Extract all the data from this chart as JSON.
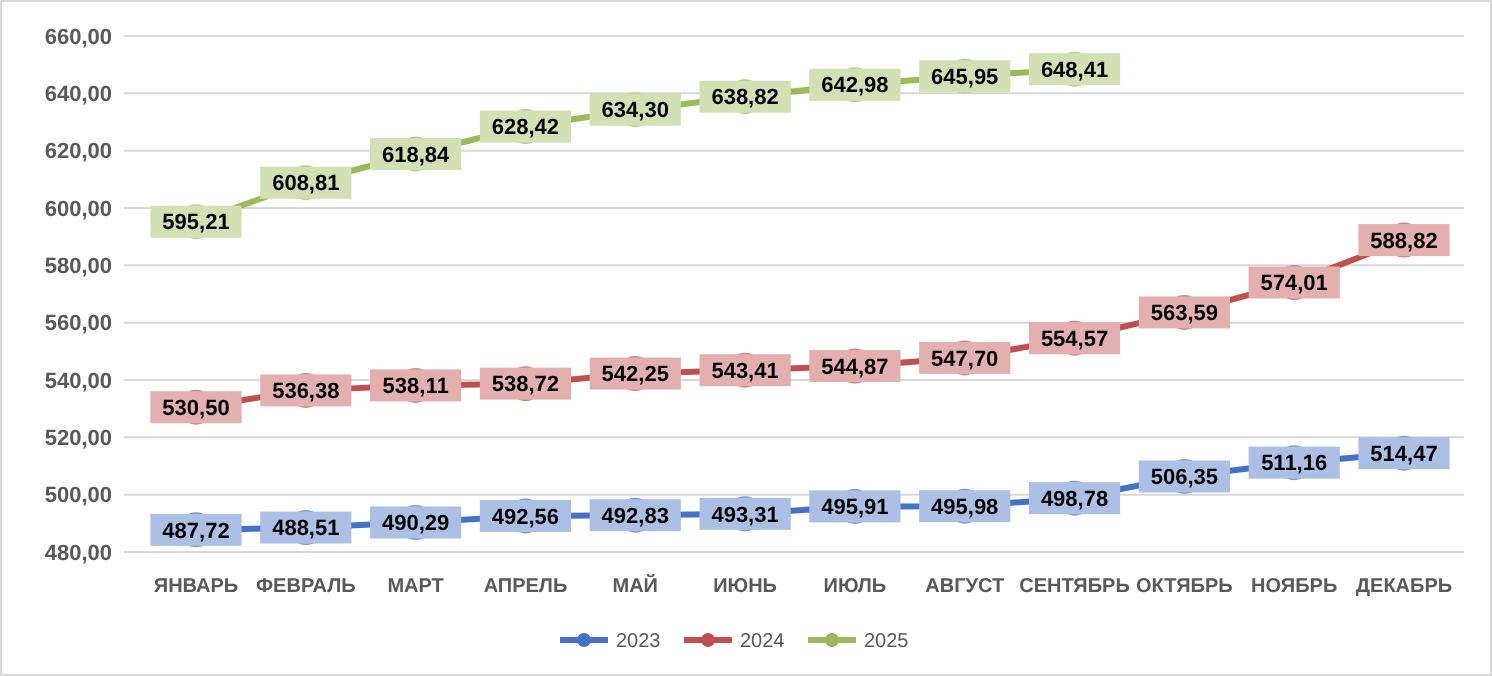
{
  "chart_data": {
    "type": "line",
    "categories": [
      "ЯНВАРЬ",
      "ФЕВРАЛЬ",
      "МАРТ",
      "АПРЕЛЬ",
      "МАЙ",
      "ИЮНЬ",
      "ИЮЛЬ",
      "АВГУСТ",
      "СЕНТЯБРЬ",
      "ОКТЯБРЬ",
      "НОЯБРЬ",
      "ДЕКАБРЬ"
    ],
    "series": [
      {
        "name": "2023",
        "color": "#4472c4",
        "values": [
          487.72,
          488.51,
          490.29,
          492.56,
          492.83,
          493.31,
          495.91,
          495.98,
          498.78,
          506.35,
          511.16,
          514.47
        ],
        "value_labels": [
          "487,72",
          "488,51",
          "490,29",
          "492,56",
          "492,83",
          "493,31",
          "495,91",
          "495,98",
          "498,78",
          "506,35",
          "511,16",
          "514,47"
        ]
      },
      {
        "name": "2024",
        "color": "#c0504d",
        "values": [
          530.5,
          536.38,
          538.11,
          538.72,
          542.25,
          543.41,
          544.87,
          547.7,
          554.57,
          563.59,
          574.01,
          588.82
        ],
        "value_labels": [
          "530,50",
          "536,38",
          "538,11",
          "538,72",
          "542,25",
          "543,41",
          "544,87",
          "547,70",
          "554,57",
          "563,59",
          "574,01",
          "588,82"
        ]
      },
      {
        "name": "2025",
        "color": "#9bbb59",
        "values": [
          595.21,
          608.81,
          618.84,
          628.42,
          634.3,
          638.82,
          642.98,
          645.95,
          648.41,
          null,
          null,
          null
        ],
        "value_labels": [
          "595,21",
          "608,81",
          "618,84",
          "628,42",
          "634,30",
          "638,82",
          "642,98",
          "645,95",
          "648,41",
          null,
          null,
          null
        ]
      }
    ],
    "ylim": [
      480,
      660
    ],
    "yticks": [
      {
        "value": 480,
        "label": "480,00"
      },
      {
        "value": 500,
        "label": "500,00"
      },
      {
        "value": 520,
        "label": "520,00"
      },
      {
        "value": 540,
        "label": "540,00"
      },
      {
        "value": 560,
        "label": "560,00"
      },
      {
        "value": 580,
        "label": "580,00"
      },
      {
        "value": 600,
        "label": "600,00"
      },
      {
        "value": 620,
        "label": "620,00"
      },
      {
        "value": 640,
        "label": "640,00"
      },
      {
        "value": 660,
        "label": "660,00"
      }
    ],
    "grid": "y",
    "legend": "bottom",
    "marker": "circle",
    "line_style": "solid"
  }
}
